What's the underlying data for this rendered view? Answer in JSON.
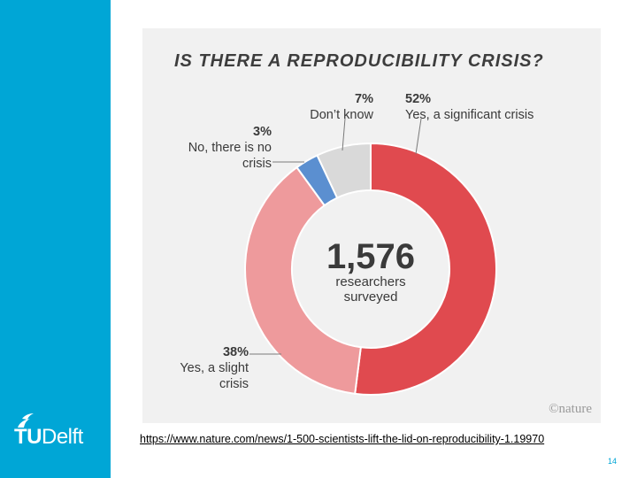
{
  "sidebar": {
    "color": "#00a6d6"
  },
  "logo": {
    "brand_tu": "TU",
    "brand_delft": "Delft"
  },
  "chart_data": {
    "type": "pie",
    "title": "IS THERE A REPRODUCIBILITY CRISIS?",
    "donut": true,
    "center": {
      "value": "1,576",
      "label_line1": "researchers",
      "label_line2": "surveyed"
    },
    "slices": [
      {
        "pct_label": "52%",
        "value": 52,
        "label_lines": [
          "Yes, a significant crisis"
        ],
        "color": "#e04a4f"
      },
      {
        "pct_label": "38%",
        "value": 38,
        "label_lines": [
          "Yes, a slight",
          "crisis"
        ],
        "color": "#ee9a9c"
      },
      {
        "pct_label": "3%",
        "value": 3,
        "label_lines": [
          "No, there is no",
          "crisis"
        ],
        "color": "#5b8fd0"
      },
      {
        "pct_label": "7%",
        "value": 7,
        "label_lines": [
          "Don’t know"
        ],
        "color": "#d9d9d9"
      }
    ],
    "credit": "©nature"
  },
  "source": {
    "url_text": "https://www.nature.com/news/1-500-scientists-lift-the-lid-on-reproducibility-1.19970"
  },
  "page": {
    "number": "14"
  }
}
